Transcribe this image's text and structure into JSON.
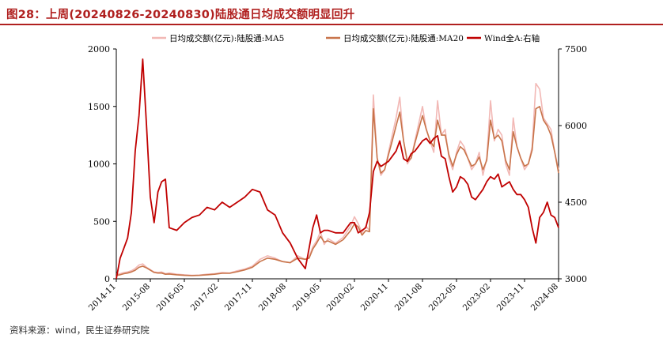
{
  "title": "图28：上周(20240826-20240830)陆股通日均成交额明显回升",
  "source": "资料来源：wind，民生证券研究院",
  "colors": {
    "ma5": "#f2b8b5",
    "ma20": "#c8744a",
    "wind": "#c00000",
    "title": "#b0201f",
    "axis": "#000000"
  },
  "chart_data": {
    "type": "line",
    "x_tick_labels": [
      "2014-11",
      "2015-08",
      "2016-05",
      "2017-02",
      "2017-11",
      "2018-08",
      "2019-05",
      "2020-02",
      "2020-11",
      "2021-08",
      "2022-05",
      "2023-02",
      "2023-11",
      "2024-08"
    ],
    "x_range": [
      "2014-11",
      "2024-08"
    ],
    "y_left": {
      "ticks": [
        0,
        500,
        1000,
        1500,
        2000
      ],
      "range": [
        0,
        2000
      ]
    },
    "y_right": {
      "ticks": [
        3000,
        4500,
        6000,
        7500
      ],
      "range": [
        3000,
        7500
      ]
    },
    "legend": [
      "日均成交额(亿元):陆股通:MA5",
      "日均成交额(亿元):陆股通:MA20",
      "Wind全A:右轴"
    ],
    "series": [
      {
        "name": "日均成交额(亿元):陆股通:MA5",
        "axis": "left",
        "color": "#f2b8b5",
        "x": [
          "2014-11",
          "2014-12",
          "2015-01",
          "2015-02",
          "2015-03",
          "2015-04",
          "2015-05",
          "2015-06",
          "2015-07",
          "2015-08",
          "2015-09",
          "2015-10",
          "2015-11",
          "2015-12",
          "2016-01",
          "2016-03",
          "2016-05",
          "2016-07",
          "2016-09",
          "2016-11",
          "2017-01",
          "2017-03",
          "2017-05",
          "2017-07",
          "2017-09",
          "2017-11",
          "2018-01",
          "2018-03",
          "2018-05",
          "2018-07",
          "2018-09",
          "2018-11",
          "2019-01",
          "2019-02",
          "2019-03",
          "2019-04",
          "2019-05",
          "2019-06",
          "2019-07",
          "2019-09",
          "2019-11",
          "2020-01",
          "2020-02",
          "2020-03",
          "2020-04",
          "2020-05",
          "2020-06",
          "2020-07",
          "2020-08",
          "2020-09",
          "2020-10",
          "2020-11",
          "2020-12",
          "2021-01",
          "2021-02",
          "2021-03",
          "2021-04",
          "2021-05",
          "2021-06",
          "2021-07",
          "2021-08",
          "2021-09",
          "2021-10",
          "2021-11",
          "2021-12",
          "2022-01",
          "2022-02",
          "2022-03",
          "2022-04",
          "2022-05",
          "2022-06",
          "2022-07",
          "2022-08",
          "2022-09",
          "2022-10",
          "2022-11",
          "2022-12",
          "2023-01",
          "2023-02",
          "2023-03",
          "2023-04",
          "2023-05",
          "2023-06",
          "2023-07",
          "2023-08",
          "2023-09",
          "2023-10",
          "2023-11",
          "2023-12",
          "2024-01",
          "2024-02",
          "2024-03",
          "2024-04",
          "2024-05",
          "2024-06",
          "2024-07",
          "2024-08"
        ],
        "values": [
          40,
          45,
          55,
          60,
          70,
          90,
          120,
          130,
          100,
          80,
          60,
          55,
          60,
          45,
          50,
          40,
          35,
          30,
          32,
          40,
          45,
          55,
          50,
          70,
          85,
          110,
          170,
          200,
          180,
          150,
          140,
          200,
          170,
          190,
          280,
          330,
          410,
          300,
          350,
          310,
          360,
          460,
          540,
          480,
          400,
          460,
          420,
          1600,
          1050,
          900,
          950,
          1100,
          1250,
          1400,
          1580,
          1200,
          1000,
          1050,
          1200,
          1350,
          1500,
          1300,
          1200,
          1100,
          1550,
          1250,
          1300,
          1050,
          950,
          1100,
          1200,
          1150,
          1050,
          950,
          1000,
          1100,
          900,
          1050,
          1550,
          1200,
          1300,
          1250,
          1000,
          900,
          1400,
          1150,
          1050,
          950,
          1000,
          1150,
          1700,
          1650,
          1400,
          1350,
          1300,
          1100,
          950
        ]
      },
      {
        "name": "日均成交额(亿元):陆股通:MA20",
        "axis": "left",
        "color": "#c8744a",
        "x": [
          "2014-11",
          "2014-12",
          "2015-01",
          "2015-02",
          "2015-03",
          "2015-04",
          "2015-05",
          "2015-06",
          "2015-07",
          "2015-08",
          "2015-09",
          "2015-10",
          "2015-11",
          "2015-12",
          "2016-01",
          "2016-03",
          "2016-05",
          "2016-07",
          "2016-09",
          "2016-11",
          "2017-01",
          "2017-03",
          "2017-05",
          "2017-07",
          "2017-09",
          "2017-11",
          "2018-01",
          "2018-03",
          "2018-05",
          "2018-07",
          "2018-09",
          "2018-11",
          "2019-01",
          "2019-02",
          "2019-03",
          "2019-04",
          "2019-05",
          "2019-06",
          "2019-07",
          "2019-09",
          "2019-11",
          "2020-01",
          "2020-02",
          "2020-03",
          "2020-04",
          "2020-05",
          "2020-06",
          "2020-07",
          "2020-08",
          "2020-09",
          "2020-10",
          "2020-11",
          "2020-12",
          "2021-01",
          "2021-02",
          "2021-03",
          "2021-04",
          "2021-05",
          "2021-06",
          "2021-07",
          "2021-08",
          "2021-09",
          "2021-10",
          "2021-11",
          "2021-12",
          "2022-01",
          "2022-02",
          "2022-03",
          "2022-04",
          "2022-05",
          "2022-06",
          "2022-07",
          "2022-08",
          "2022-09",
          "2022-10",
          "2022-11",
          "2022-12",
          "2023-01",
          "2023-02",
          "2023-03",
          "2023-04",
          "2023-05",
          "2023-06",
          "2023-07",
          "2023-08",
          "2023-09",
          "2023-10",
          "2023-11",
          "2023-12",
          "2024-01",
          "2024-02",
          "2024-03",
          "2024-04",
          "2024-05",
          "2024-06",
          "2024-07",
          "2024-08"
        ],
        "values": [
          30,
          35,
          45,
          50,
          60,
          75,
          100,
          110,
          95,
          75,
          55,
          50,
          50,
          40,
          42,
          35,
          30,
          28,
          30,
          35,
          40,
          48,
          48,
          62,
          78,
          100,
          150,
          180,
          170,
          150,
          140,
          180,
          170,
          180,
          260,
          310,
          370,
          320,
          330,
          300,
          340,
          420,
          480,
          450,
          380,
          420,
          410,
          1480,
          1050,
          920,
          950,
          1080,
          1200,
          1330,
          1450,
          1200,
          1020,
          1050,
          1180,
          1300,
          1420,
          1300,
          1200,
          1150,
          1380,
          1250,
          1250,
          1080,
          980,
          1080,
          1150,
          1120,
          1050,
          980,
          1000,
          1060,
          950,
          1030,
          1380,
          1220,
          1250,
          1200,
          1030,
          950,
          1280,
          1150,
          1050,
          980,
          1000,
          1120,
          1480,
          1500,
          1380,
          1330,
          1250,
          1100,
          920
        ]
      },
      {
        "name": "Wind全A:右轴",
        "axis": "right",
        "color": "#c00000",
        "x": [
          "2014-11",
          "2014-12",
          "2015-01",
          "2015-02",
          "2015-03",
          "2015-04",
          "2015-05",
          "2015-06",
          "2015-07",
          "2015-08",
          "2015-09",
          "2015-10",
          "2015-11",
          "2015-12",
          "2016-01",
          "2016-03",
          "2016-05",
          "2016-07",
          "2016-09",
          "2016-11",
          "2017-01",
          "2017-03",
          "2017-05",
          "2017-07",
          "2017-09",
          "2017-11",
          "2018-01",
          "2018-03",
          "2018-05",
          "2018-07",
          "2018-09",
          "2018-11",
          "2019-01",
          "2019-02",
          "2019-03",
          "2019-04",
          "2019-05",
          "2019-06",
          "2019-07",
          "2019-09",
          "2019-11",
          "2020-01",
          "2020-02",
          "2020-03",
          "2020-04",
          "2020-05",
          "2020-06",
          "2020-07",
          "2020-08",
          "2020-09",
          "2020-10",
          "2020-11",
          "2020-12",
          "2021-01",
          "2021-02",
          "2021-03",
          "2021-04",
          "2021-05",
          "2021-06",
          "2021-07",
          "2021-08",
          "2021-09",
          "2021-10",
          "2021-11",
          "2021-12",
          "2022-01",
          "2022-02",
          "2022-03",
          "2022-04",
          "2022-05",
          "2022-06",
          "2022-07",
          "2022-08",
          "2022-09",
          "2022-10",
          "2022-11",
          "2022-12",
          "2023-01",
          "2023-02",
          "2023-03",
          "2023-04",
          "2023-05",
          "2023-06",
          "2023-07",
          "2023-08",
          "2023-09",
          "2023-10",
          "2023-11",
          "2023-12",
          "2024-01",
          "2024-02",
          "2024-03",
          "2024-04",
          "2024-05",
          "2024-06",
          "2024-07",
          "2024-08"
        ],
        "values": [
          3000,
          3400,
          3600,
          3800,
          4300,
          5500,
          6200,
          7300,
          6000,
          4600,
          4100,
          4700,
          4900,
          4950,
          4000,
          3950,
          4100,
          4200,
          4250,
          4400,
          4350,
          4500,
          4400,
          4500,
          4600,
          4750,
          4700,
          4350,
          4250,
          3900,
          3700,
          3400,
          3200,
          3600,
          4000,
          4250,
          3900,
          3950,
          3950,
          3900,
          3900,
          4100,
          4100,
          3900,
          3950,
          4000,
          4300,
          5100,
          5300,
          5200,
          5250,
          5300,
          5400,
          5500,
          5700,
          5350,
          5300,
          5450,
          5500,
          5600,
          5700,
          5750,
          5650,
          5750,
          5800,
          5400,
          5350,
          5000,
          4700,
          4800,
          5000,
          4950,
          4850,
          4600,
          4550,
          4650,
          4750,
          4900,
          5000,
          4950,
          5050,
          4800,
          4850,
          4900,
          4750,
          4650,
          4650,
          4550,
          4400,
          4000,
          3700,
          4200,
          4300,
          4500,
          4250,
          4200,
          4000
        ]
      }
    ]
  }
}
